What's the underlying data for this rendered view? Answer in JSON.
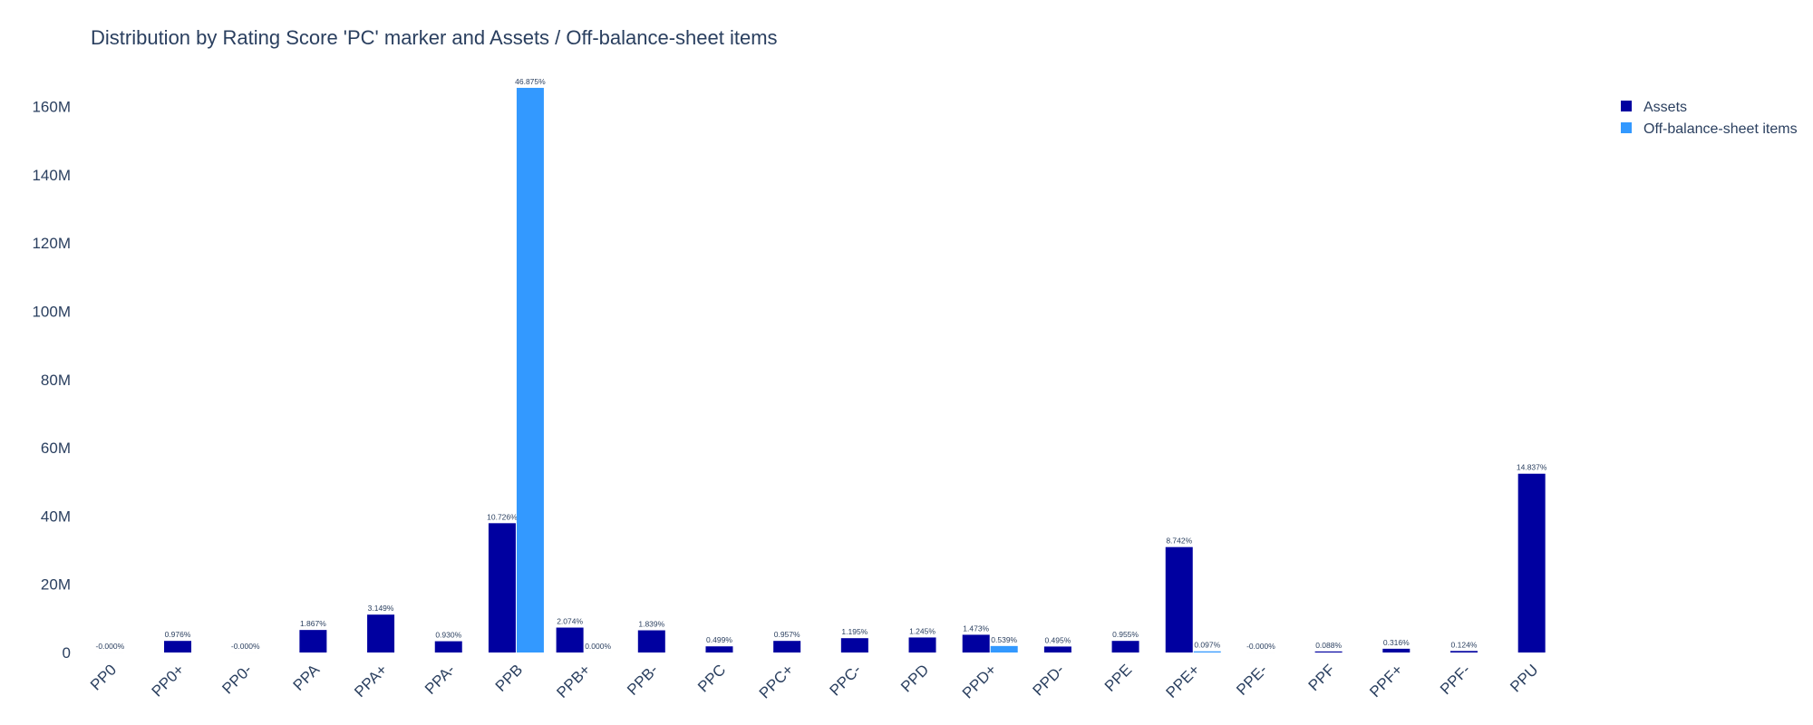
{
  "chart_data": {
    "type": "bar",
    "title": "Distribution by Rating Score 'PC' marker and Assets / Off-balance-sheet items",
    "xlabel": "",
    "ylabel": "",
    "ylim": [
      0,
      170000000
    ],
    "yticks": [
      0,
      20000000,
      40000000,
      60000000,
      80000000,
      100000000,
      120000000,
      140000000,
      160000000
    ],
    "ytick_labels": [
      "0",
      "20M",
      "40M",
      "60M",
      "80M",
      "100M",
      "120M",
      "140M",
      "160M"
    ],
    "grid": false,
    "legend_position": "top-right",
    "categories": [
      "PP0",
      "PP0+",
      "PP0-",
      "PPA",
      "PPA+",
      "PPA-",
      "PPB",
      "PPB+",
      "PPB-",
      "PPC",
      "PPC+",
      "PPC-",
      "PPD",
      "PPD+",
      "PPD-",
      "PPE",
      "PPE+",
      "PPE-",
      "PPF",
      "PPF+",
      "PPF-",
      "PPU"
    ],
    "series": [
      {
        "name": "Assets",
        "color": "#0000a0",
        "values": [
          0,
          3400000,
          0,
          6600000,
          11100000,
          3300000,
          37900000,
          7300000,
          6500000,
          1800000,
          3400000,
          4200000,
          4400000,
          5200000,
          1750000,
          3400000,
          30900000,
          0,
          310000,
          1100000,
          440000,
          52400000
        ],
        "labels": [
          "-0.000%",
          "0.976%",
          "-0.000%",
          "1.867%",
          "3.149%",
          "0.930%",
          "10.726%",
          "2.074%",
          "1.839%",
          "0.499%",
          "0.957%",
          "1.195%",
          "1.245%",
          "1.473%",
          "0.495%",
          "0.955%",
          "8.742%",
          "-0.000%",
          "0.088%",
          "0.316%",
          "0.124%",
          "14.837%"
        ]
      },
      {
        "name": "Off-balance-sheet items",
        "color": "#3399ff",
        "values": [
          null,
          null,
          null,
          null,
          null,
          null,
          165500000,
          0,
          null,
          null,
          null,
          null,
          null,
          1900000,
          null,
          null,
          340000,
          null,
          null,
          null,
          null,
          null
        ],
        "labels": [
          null,
          null,
          null,
          null,
          null,
          null,
          "46.875%",
          "0.000%",
          null,
          null,
          null,
          null,
          null,
          "0.539%",
          null,
          null,
          "0.097%",
          null,
          null,
          null,
          null,
          null
        ]
      }
    ]
  }
}
